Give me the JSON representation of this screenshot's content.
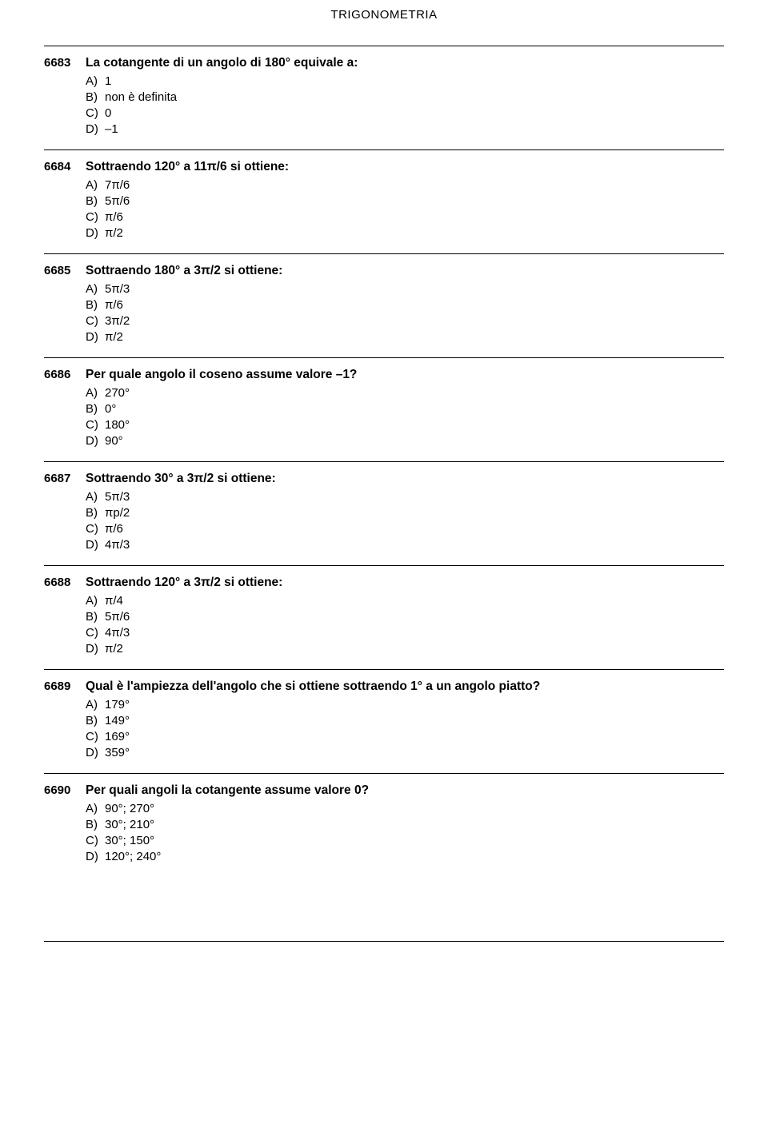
{
  "header": {
    "title": "TRIGONOMETRIA"
  },
  "questions": [
    {
      "number": "6683",
      "text": "La cotangente di un angolo di 180° equivale a:",
      "answers": [
        {
          "label": "A)",
          "text": "1"
        },
        {
          "label": "B)",
          "text": "non è definita"
        },
        {
          "label": "C)",
          "text": "0"
        },
        {
          "label": "D)",
          "text": "–1"
        }
      ]
    },
    {
      "number": "6684",
      "text": "Sottraendo 120° a 11π/6 si ottiene:",
      "answers": [
        {
          "label": "A)",
          "text": "7π/6"
        },
        {
          "label": "B)",
          "text": "5π/6"
        },
        {
          "label": "C)",
          "text": "π/6"
        },
        {
          "label": "D)",
          "text": "π/2"
        }
      ]
    },
    {
      "number": "6685",
      "text": "Sottraendo 180° a 3π/2 si ottiene:",
      "answers": [
        {
          "label": "A)",
          "text": "5π/3"
        },
        {
          "label": "B)",
          "text": "π/6"
        },
        {
          "label": "C)",
          "text": "3π/2"
        },
        {
          "label": "D)",
          "text": "π/2"
        }
      ]
    },
    {
      "number": "6686",
      "text": "Per quale angolo il coseno assume valore –1?",
      "answers": [
        {
          "label": "A)",
          "text": "270°"
        },
        {
          "label": "B)",
          "text": "0°"
        },
        {
          "label": "C)",
          "text": "180°"
        },
        {
          "label": "D)",
          "text": "90°"
        }
      ]
    },
    {
      "number": "6687",
      "text": "Sottraendo 30° a 3π/2 si ottiene:",
      "answers": [
        {
          "label": "A)",
          "text": "5π/3"
        },
        {
          "label": "B)",
          "text": "πp/2"
        },
        {
          "label": "C)",
          "text": "π/6"
        },
        {
          "label": "D)",
          "text": "4π/3"
        }
      ]
    },
    {
      "number": "6688",
      "text": "Sottraendo 120° a 3π/2 si ottiene:",
      "answers": [
        {
          "label": "A)",
          "text": "π/4"
        },
        {
          "label": "B)",
          "text": "5π/6"
        },
        {
          "label": "C)",
          "text": "4π/3"
        },
        {
          "label": "D)",
          "text": "π/2"
        }
      ]
    },
    {
      "number": "6689",
      "text": "Qual è l'ampiezza dell'angolo che si ottiene sottraendo 1° a un angolo piatto?",
      "answers": [
        {
          "label": "A)",
          "text": "179°"
        },
        {
          "label": "B)",
          "text": "149°"
        },
        {
          "label": "C)",
          "text": "169°"
        },
        {
          "label": "D)",
          "text": "359°"
        }
      ]
    },
    {
      "number": "6690",
      "text": "Per quali angoli la cotangente assume valore 0?",
      "answers": [
        {
          "label": "A)",
          "text": "90°; 270°"
        },
        {
          "label": "B)",
          "text": "30°; 210°"
        },
        {
          "label": "C)",
          "text": "30°; 150°"
        },
        {
          "label": "D)",
          "text": "120°; 240°"
        }
      ]
    }
  ]
}
